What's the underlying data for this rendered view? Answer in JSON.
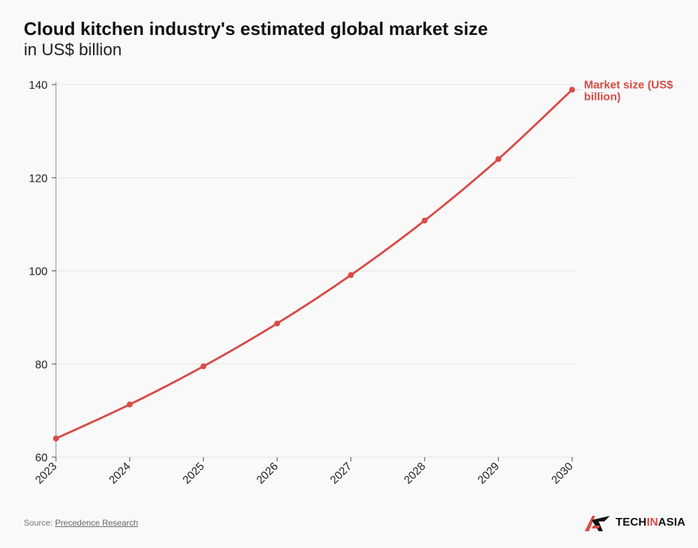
{
  "header": {
    "title": "Cloud kitchen industry's estimated global market size",
    "subtitle": "in US$ billion"
  },
  "footer": {
    "source_prefix": "Source: ",
    "source_link": "Precedence Research",
    "brand_part1": "TECH",
    "brand_part2": "IN",
    "brand_part3": "ASIA"
  },
  "colors": {
    "series": "#d94b44",
    "grid": "#e4e4e4",
    "brand_accent": "#d94b44"
  },
  "chart_data": {
    "type": "line",
    "title": "Cloud kitchen industry's estimated global market size",
    "subtitle": "in US$ billion",
    "x": [
      "2023",
      "2024",
      "2025",
      "2026",
      "2027",
      "2028",
      "2029",
      "2030"
    ],
    "series": [
      {
        "name": "Market size (US$ billion)",
        "values": [
          64.0,
          71.3,
          79.5,
          88.7,
          99.1,
          110.8,
          124.0,
          138.9
        ]
      }
    ],
    "yticks": [
      60,
      80,
      100,
      120,
      140
    ],
    "ylim": [
      60,
      140
    ],
    "grid": true,
    "legend": "end-of-line label"
  }
}
